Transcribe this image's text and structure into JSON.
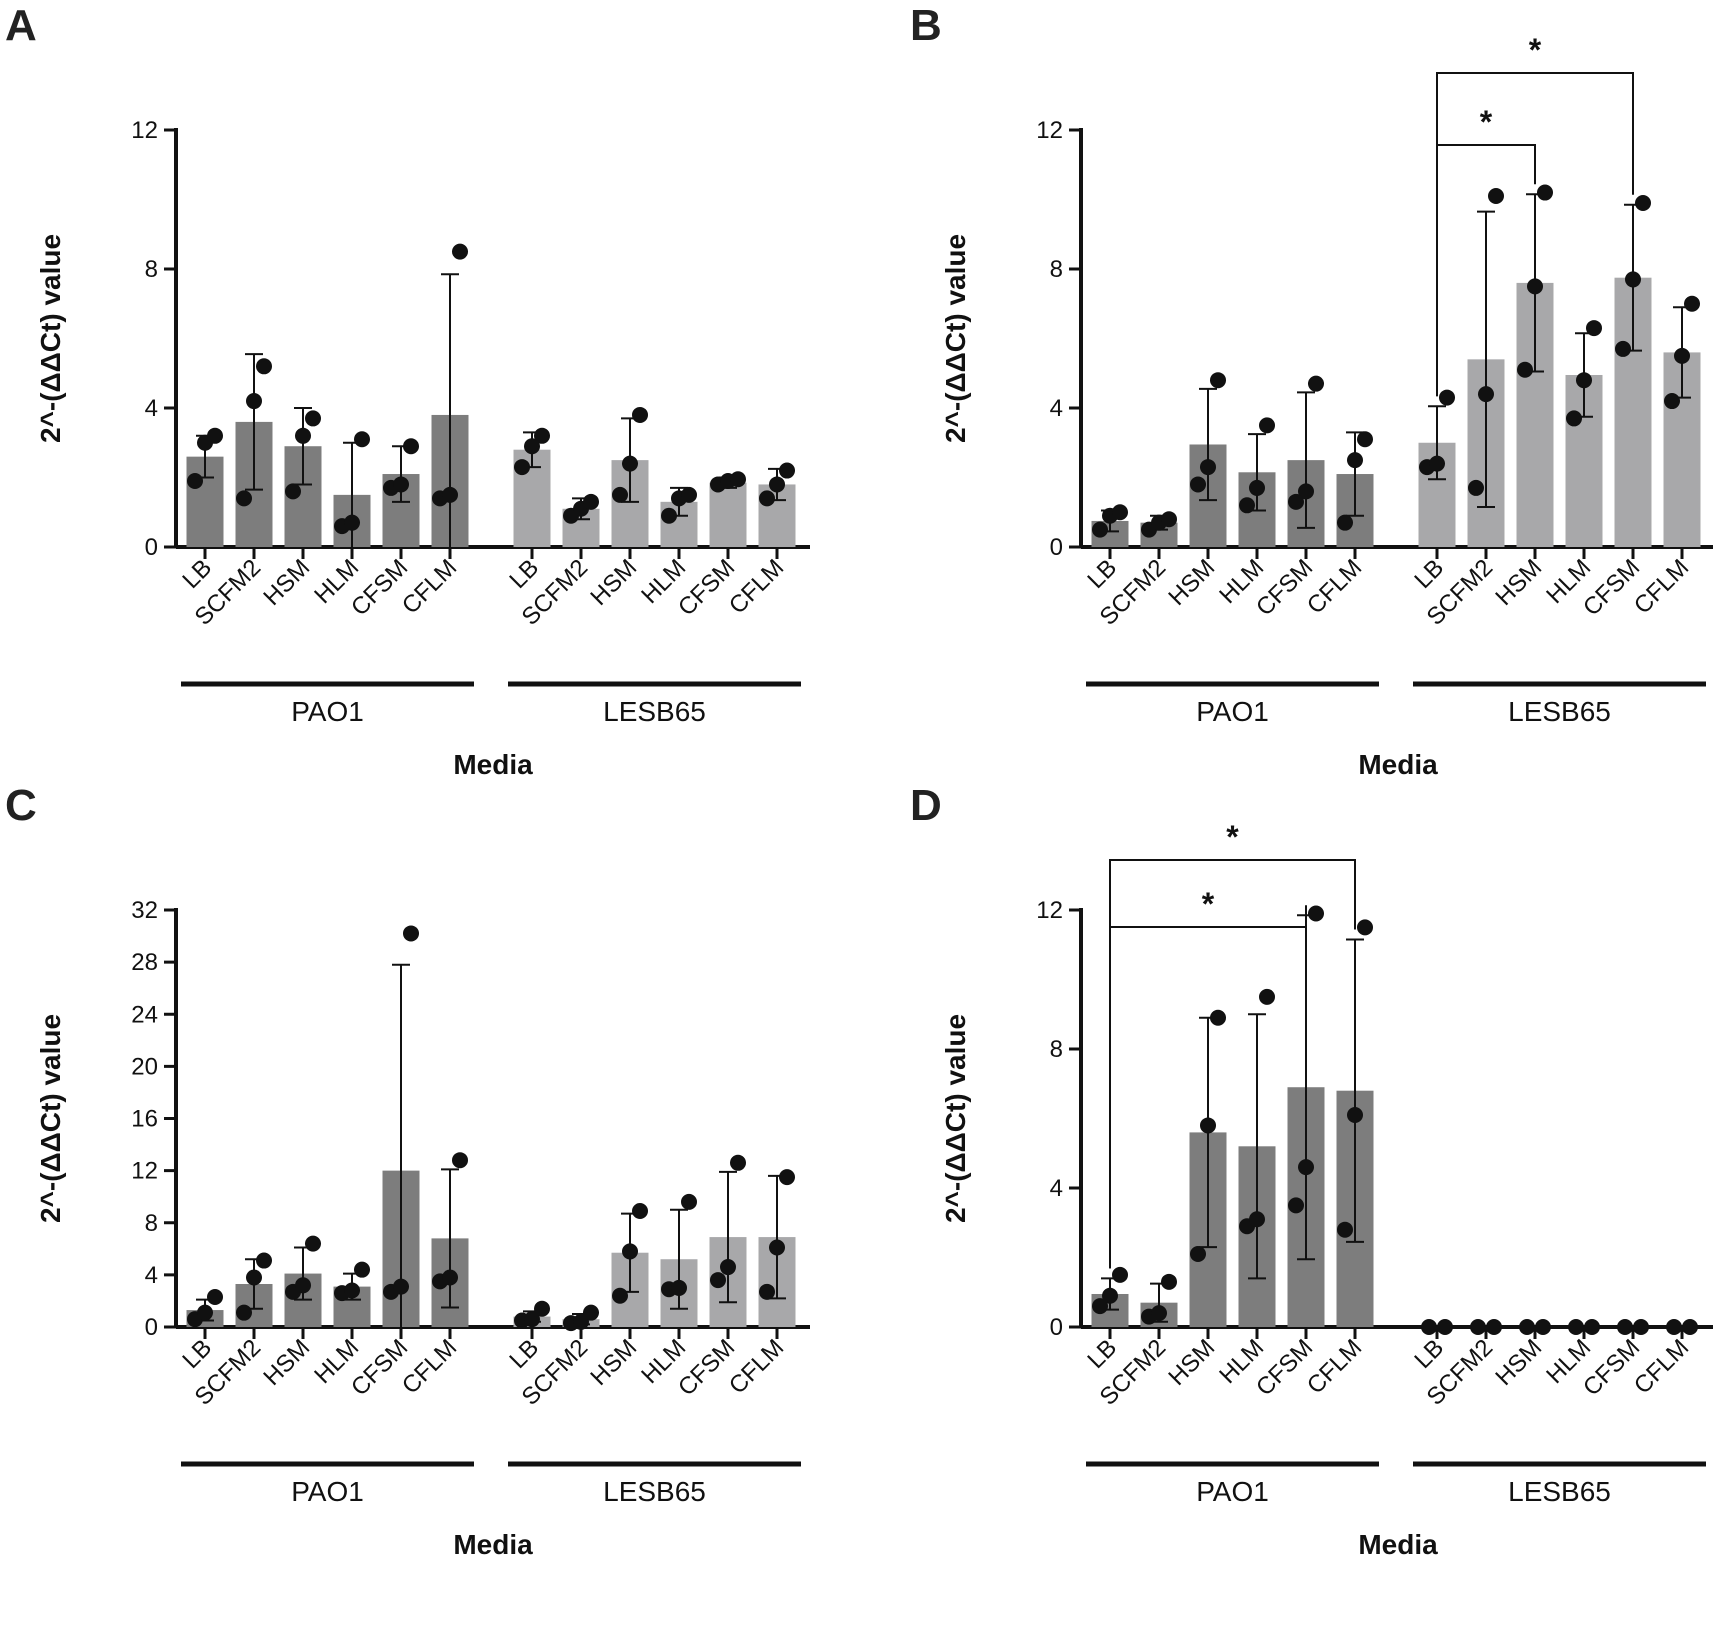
{
  "figure": {
    "colors": {
      "pao1_bar": "#7d7d7d",
      "lesb65_bar": "#a8a8aa",
      "point": "#111111",
      "axis": "#111111"
    }
  },
  "chart_data": [
    {
      "panel": "A",
      "type": "bar",
      "ylabel": "2^-(ΔΔCt) value",
      "xlabel": "Media",
      "ylim": [
        0,
        12
      ],
      "yticks": [
        "0",
        "4",
        "8",
        "12"
      ],
      "categories": [
        "LB",
        "SCFM2",
        "HSM",
        "HLM",
        "CFSM",
        "CFLM"
      ],
      "groups": [
        {
          "name": "PAO1",
          "means": [
            2.6,
            3.6,
            2.9,
            1.5,
            2.1,
            3.8
          ],
          "errors": [
            0.6,
            1.95,
            1.1,
            1.5,
            0.8,
            4.05
          ],
          "points": [
            [
              1.9,
              3.0,
              3.2
            ],
            [
              1.4,
              4.2,
              5.2
            ],
            [
              1.6,
              3.2,
              3.7
            ],
            [
              0.6,
              0.7,
              3.1
            ],
            [
              1.7,
              1.8,
              2.9
            ],
            [
              1.4,
              1.5,
              8.5
            ]
          ]
        },
        {
          "name": "LESB65",
          "means": [
            2.8,
            1.1,
            2.5,
            1.3,
            1.85,
            1.8
          ],
          "errors": [
            0.5,
            0.3,
            1.2,
            0.4,
            0.15,
            0.45
          ],
          "points": [
            [
              2.3,
              2.9,
              3.2
            ],
            [
              0.9,
              1.1,
              1.3
            ],
            [
              1.5,
              2.4,
              3.8
            ],
            [
              0.9,
              1.4,
              1.5
            ],
            [
              1.8,
              1.9,
              1.95
            ],
            [
              1.4,
              1.8,
              2.2
            ]
          ]
        }
      ],
      "significance": []
    },
    {
      "panel": "B",
      "type": "bar",
      "ylabel": "2^-(ΔΔCt) value",
      "xlabel": "Media",
      "ylim": [
        0,
        12
      ],
      "yticks": [
        "0",
        "4",
        "8",
        "12"
      ],
      "categories": [
        "LB",
        "SCFM2",
        "HSM",
        "HLM",
        "CFSM",
        "CFLM"
      ],
      "groups": [
        {
          "name": "PAO1",
          "means": [
            0.75,
            0.7,
            2.95,
            2.15,
            2.5,
            2.1
          ],
          "errors": [
            0.3,
            0.2,
            1.6,
            1.1,
            1.95,
            1.2
          ],
          "points": [
            [
              0.5,
              0.9,
              1.0
            ],
            [
              0.5,
              0.7,
              0.8
            ],
            [
              1.8,
              2.3,
              4.8
            ],
            [
              1.2,
              1.7,
              3.5
            ],
            [
              1.3,
              1.6,
              4.7
            ],
            [
              0.7,
              2.5,
              3.1
            ]
          ]
        },
        {
          "name": "LESB65",
          "means": [
            3.0,
            5.4,
            7.6,
            4.95,
            7.75,
            5.6
          ],
          "errors": [
            1.05,
            4.25,
            2.55,
            1.2,
            2.1,
            1.3
          ],
          "points": [
            [
              2.3,
              2.4,
              4.3
            ],
            [
              1.7,
              4.4,
              10.1
            ],
            [
              5.1,
              7.5,
              10.2
            ],
            [
              3.7,
              4.8,
              6.3
            ],
            [
              5.7,
              7.7,
              9.9
            ],
            [
              4.2,
              5.5,
              7.0
            ]
          ]
        }
      ],
      "significance": [
        {
          "from": "LESB65 LB",
          "to": "LESB65 HSM",
          "label": "*"
        },
        {
          "from": "LESB65 LB",
          "to": "LESB65 CFSM",
          "label": "*"
        }
      ]
    },
    {
      "panel": "C",
      "type": "bar",
      "ylabel": "2^-(ΔΔCt) value",
      "xlabel": "Media",
      "ylim": [
        0,
        32
      ],
      "yticks": [
        "0",
        "4",
        "8",
        "12",
        "16",
        "20",
        "24",
        "28",
        "32"
      ],
      "categories": [
        "LB",
        "SCFM2",
        "HSM",
        "HLM",
        "CFSM",
        "CFLM"
      ],
      "groups": [
        {
          "name": "PAO1",
          "means": [
            1.3,
            3.3,
            4.1,
            3.1,
            12.0,
            6.8
          ],
          "errors": [
            0.8,
            1.9,
            2.0,
            1.0,
            15.8,
            5.3
          ],
          "points": [
            [
              0.6,
              1.1,
              2.3
            ],
            [
              1.1,
              3.8,
              5.1
            ],
            [
              2.7,
              3.2,
              6.4
            ],
            [
              2.6,
              2.8,
              4.4
            ],
            [
              2.7,
              3.1,
              30.2
            ],
            [
              3.5,
              3.8,
              12.8
            ]
          ]
        },
        {
          "name": "LESB65",
          "means": [
            0.8,
            0.6,
            5.7,
            5.2,
            6.9,
            6.9
          ],
          "errors": [
            0.4,
            0.4,
            3.0,
            3.8,
            5.0,
            4.7
          ],
          "points": [
            [
              0.5,
              0.6,
              1.4
            ],
            [
              0.3,
              0.4,
              1.1
            ],
            [
              2.4,
              5.8,
              8.9
            ],
            [
              2.9,
              3.0,
              9.6
            ],
            [
              3.6,
              4.6,
              12.6
            ],
            [
              2.7,
              6.1,
              11.5
            ]
          ]
        }
      ],
      "significance": []
    },
    {
      "panel": "D",
      "type": "bar",
      "ylabel": "2^-(ΔΔCt) value",
      "xlabel": "Media",
      "ylim": [
        0,
        12
      ],
      "yticks": [
        "0",
        "4",
        "8",
        "12"
      ],
      "categories": [
        "LB",
        "SCFM2",
        "HSM",
        "HLM",
        "CFSM",
        "CFLM"
      ],
      "groups": [
        {
          "name": "PAO1",
          "means": [
            0.95,
            0.7,
            5.6,
            5.2,
            6.9,
            6.8
          ],
          "errors": [
            0.45,
            0.55,
            3.3,
            3.8,
            4.95,
            4.35
          ],
          "points": [
            [
              0.6,
              0.9,
              1.5
            ],
            [
              0.3,
              0.4,
              1.3
            ],
            [
              2.1,
              5.8,
              8.9
            ],
            [
              2.9,
              3.1,
              9.5
            ],
            [
              3.5,
              4.6,
              11.9
            ],
            [
              2.8,
              6.1,
              11.5
            ]
          ]
        },
        {
          "name": "LESB65",
          "means": [
            0,
            0,
            0,
            0,
            0,
            0
          ],
          "errors": [
            0,
            0,
            0,
            0,
            0,
            0
          ],
          "points": [
            [
              0,
              0
            ],
            [
              0,
              0
            ],
            [
              0,
              0
            ],
            [
              0,
              0
            ],
            [
              0,
              0
            ],
            [
              0,
              0
            ]
          ]
        }
      ],
      "significance": [
        {
          "from": "PAO1 LB",
          "to": "PAO1 CFSM",
          "label": "*"
        },
        {
          "from": "PAO1 LB",
          "to": "PAO1 CFLM",
          "label": "*"
        }
      ]
    }
  ]
}
